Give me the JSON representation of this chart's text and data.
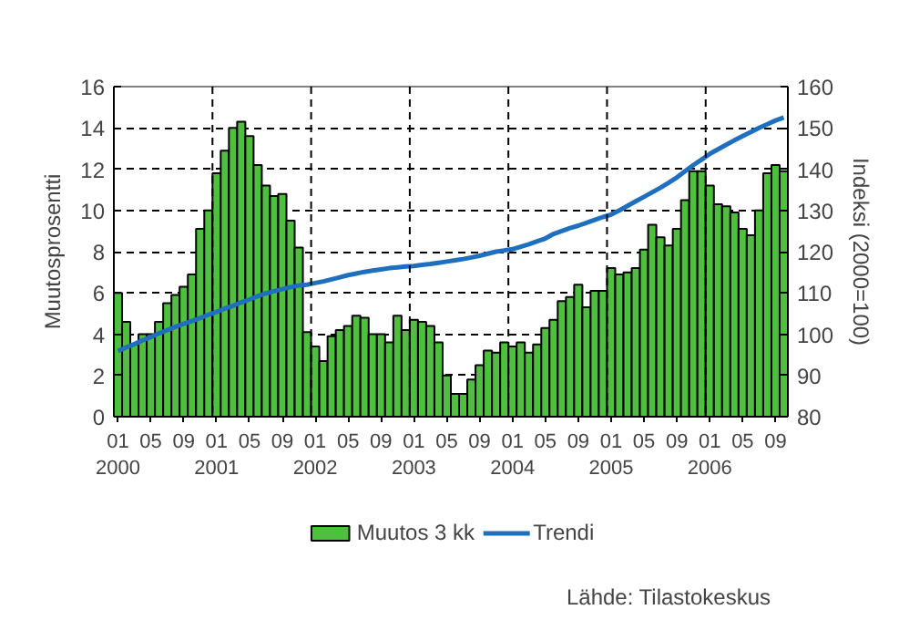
{
  "chart_data": {
    "type": "bar",
    "categories": [
      "01\n2000",
      null,
      null,
      null,
      "05",
      null,
      null,
      null,
      "09",
      null,
      null,
      null,
      "01\n2001",
      null,
      null,
      null,
      "05",
      null,
      null,
      null,
      "09",
      null,
      null,
      null,
      "01\n2002",
      null,
      null,
      null,
      "05",
      null,
      null,
      null,
      "09",
      null,
      null,
      null,
      "01\n2003",
      null,
      null,
      null,
      "05",
      null,
      null,
      null,
      "09",
      null,
      null,
      null,
      "01\n2004",
      null,
      null,
      null,
      "05",
      null,
      null,
      null,
      "09",
      null,
      null,
      null,
      "01\n2005",
      null,
      null,
      null,
      "05",
      null,
      null,
      null,
      "09",
      null,
      null,
      null,
      "01\n2006",
      null,
      null,
      null,
      "05",
      null,
      null,
      null,
      "09",
      null
    ],
    "series": [
      {
        "name": "Muutos 3 kk",
        "type": "bar",
        "color": "#4fbf3f",
        "values": [
          6.0,
          4.6,
          3.5,
          4.0,
          4.0,
          4.6,
          5.5,
          5.9,
          6.3,
          6.9,
          9.1,
          10.0,
          11.8,
          12.9,
          14.0,
          14.3,
          13.6,
          12.2,
          11.2,
          10.7,
          10.8,
          9.5,
          8.2,
          4.1,
          3.4,
          2.7,
          3.9,
          4.2,
          4.4,
          4.9,
          4.8,
          4.0,
          4.0,
          3.6,
          4.9,
          4.2,
          4.7,
          4.6,
          4.4,
          3.6,
          2.0,
          1.1,
          1.1,
          1.8,
          2.5,
          3.2,
          3.1,
          3.6,
          3.4,
          3.6,
          3.1,
          3.5,
          4.3,
          4.7,
          5.6,
          5.8,
          6.4,
          5.3,
          6.1,
          6.1,
          7.2,
          6.9,
          7.0,
          7.2,
          8.1,
          9.3,
          8.7,
          8.3,
          9.1,
          10.5,
          11.9,
          11.9,
          11.2,
          10.3,
          10.2,
          9.9,
          9.1,
          8.8,
          10.0,
          11.8,
          12.2,
          11.9
        ]
      },
      {
        "name": "Trendi",
        "type": "line",
        "axis": "y2",
        "color": "#1f6fbf",
        "values": [
          95.9,
          96.8,
          97.6,
          98.5,
          99.3,
          100.2,
          101.0,
          101.8,
          102.5,
          103.2,
          103.9,
          104.7,
          105.4,
          106.2,
          106.9,
          107.7,
          108.4,
          109.2,
          109.9,
          110.4,
          110.9,
          111.4,
          111.8,
          112.0,
          112.4,
          112.8,
          113.3,
          113.8,
          114.3,
          114.7,
          115.1,
          115.4,
          115.7,
          116.0,
          116.2,
          116.4,
          116.5,
          116.8,
          117.0,
          117.3,
          117.6,
          117.9,
          118.2,
          118.6,
          119.0,
          119.5,
          120.0,
          120.3,
          120.6,
          121.2,
          121.8,
          122.5,
          123.2,
          124.3,
          125.0,
          125.7,
          126.3,
          127.0,
          127.7,
          128.4,
          129.0,
          130.0,
          131.1,
          132.2,
          133.3,
          134.4,
          135.5,
          136.7,
          138.0,
          139.5,
          141.0,
          142.3,
          143.7,
          144.8,
          145.9,
          147.0,
          148.0,
          149.0,
          150.0,
          150.9,
          151.8,
          152.5
        ]
      }
    ],
    "ylabel": "Muutosprosentti",
    "y2label": "Indeksi (2000=100)",
    "ylim": [
      0,
      16
    ],
    "yticks": [
      0,
      2,
      4,
      6,
      8,
      10,
      12,
      14,
      16
    ],
    "y2lim": [
      80,
      160
    ],
    "y2ticks": [
      80,
      90,
      100,
      110,
      120,
      130,
      140,
      150,
      160
    ],
    "grid": true,
    "legend": "bottom",
    "annotations": [
      "Lähde: Tilastokeskus"
    ]
  }
}
